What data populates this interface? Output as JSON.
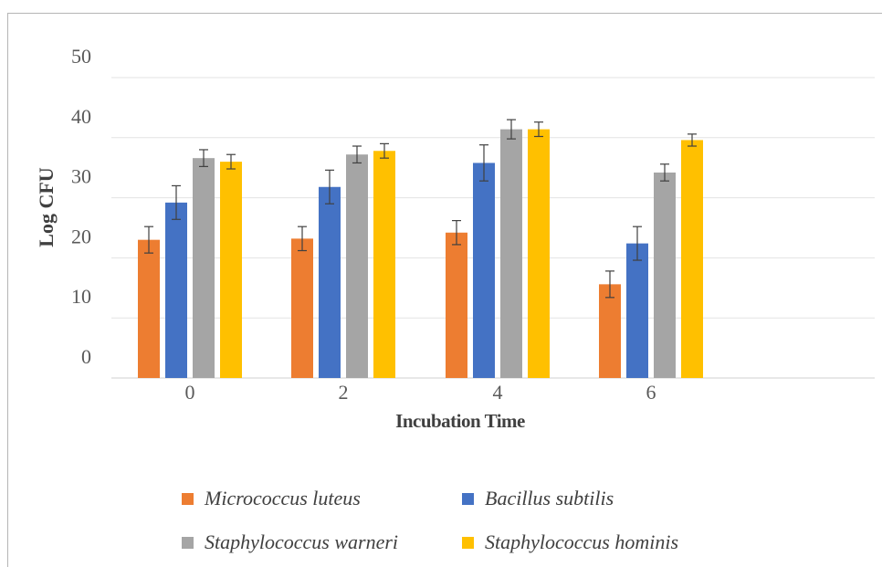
{
  "chart_data": {
    "type": "bar",
    "title": "",
    "xlabel": "Incubation Time",
    "ylabel": "Log CFU",
    "categories": [
      "0",
      "2",
      "4",
      "6"
    ],
    "yticks": [
      "0",
      "10",
      "20",
      "30",
      "40",
      "50"
    ],
    "ylim": [
      0,
      50
    ],
    "grid": true,
    "legend_position": "bottom",
    "series": [
      {
        "name": "Micrococcus luteus",
        "color": "#ed7d31",
        "values": [
          23,
          23.2,
          24.2,
          15.6
        ],
        "errors": [
          2.2,
          2.0,
          2.0,
          2.2
        ]
      },
      {
        "name": "Bacillus subtilis",
        "color": "#4472c4",
        "values": [
          29.2,
          31.8,
          35.8,
          22.4
        ],
        "errors": [
          2.8,
          2.8,
          3.0,
          2.8
        ]
      },
      {
        "name": "Staphylococcus warneri",
        "color": "#a5a5a5",
        "values": [
          36.6,
          37.2,
          41.4,
          34.2
        ],
        "errors": [
          1.4,
          1.4,
          1.6,
          1.4
        ]
      },
      {
        "name": "Staphylococcus hominis",
        "color": "#ffc000",
        "values": [
          36.0,
          37.8,
          41.4,
          39.6
        ],
        "errors": [
          1.2,
          1.2,
          1.2,
          1.0
        ]
      }
    ]
  }
}
